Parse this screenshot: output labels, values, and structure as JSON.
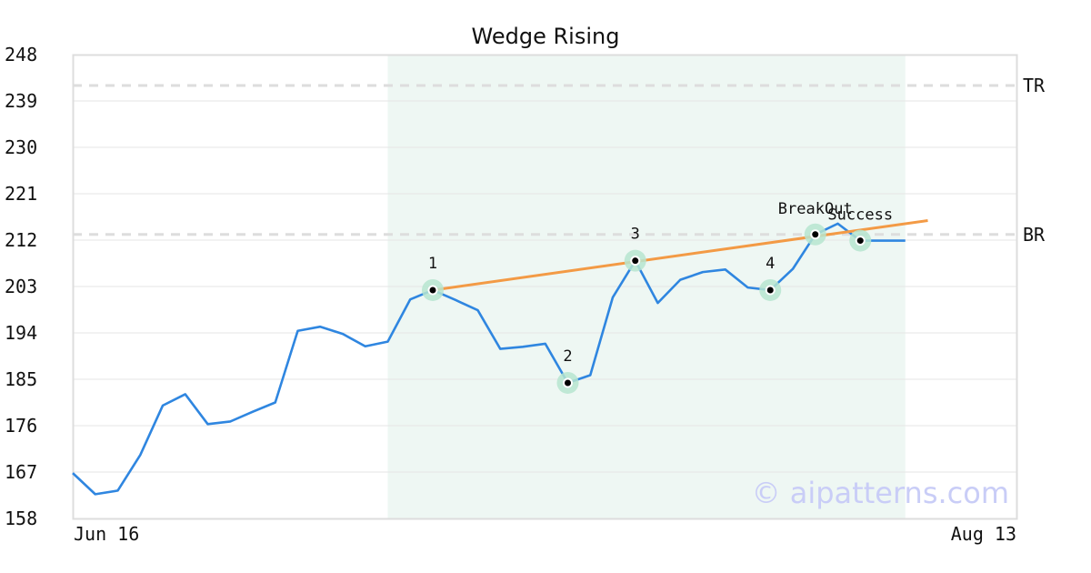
{
  "chart_data": {
    "type": "line",
    "title": "Wedge Rising",
    "ylim": [
      158,
      248
    ],
    "yticks": [
      "248",
      "239",
      "230",
      "221",
      "212",
      "203",
      "194",
      "185",
      "176",
      "167",
      "158"
    ],
    "xtick_labels": [
      "Jun 16",
      "Aug 13"
    ],
    "series": [
      {
        "values": [
          166.8,
          162.7,
          163.4,
          170.3,
          179.9,
          182.1,
          176.3,
          176.8,
          178.7,
          180.5,
          194.4,
          195.2,
          193.8,
          191.4,
          192.3,
          200.5,
          202.3,
          200.4,
          198.4,
          190.9,
          191.3,
          191.9,
          184.3,
          185.8,
          200.9,
          208.0,
          199.8,
          204.3,
          205.8,
          206.3,
          202.8,
          202.3,
          206.4,
          213.1,
          215.2,
          211.9,
          211.9,
          211.9
        ],
        "color": "#2f86e0"
      }
    ],
    "trendline": {
      "from": {
        "index": 16,
        "value": 202.3
      },
      "to": {
        "index": 38,
        "value": 215.8
      },
      "color": "#f39a45"
    },
    "reference_lines": [
      {
        "label": "TR",
        "value": 242.0
      },
      {
        "label": "BR",
        "value": 213.1
      }
    ],
    "pattern_region": {
      "start_index": 14,
      "end_index": 37,
      "color": "#eef7f3"
    },
    "pivots": [
      {
        "index": 16,
        "value": 202.3,
        "label": "1",
        "label_pos": "above"
      },
      {
        "index": 22,
        "value": 184.3,
        "label": "2",
        "label_pos": "above"
      },
      {
        "index": 25,
        "value": 208.0,
        "label": "3",
        "label_pos": "above"
      },
      {
        "index": 31,
        "value": 202.3,
        "label": "4",
        "label_pos": "above"
      },
      {
        "index": 33,
        "value": 213.1,
        "label": "BreakOut",
        "label_pos": "above"
      },
      {
        "index": 35,
        "value": 211.9,
        "label": "Success",
        "label_pos": "above"
      }
    ],
    "grid": true,
    "watermark": "© aipatterns.com"
  }
}
